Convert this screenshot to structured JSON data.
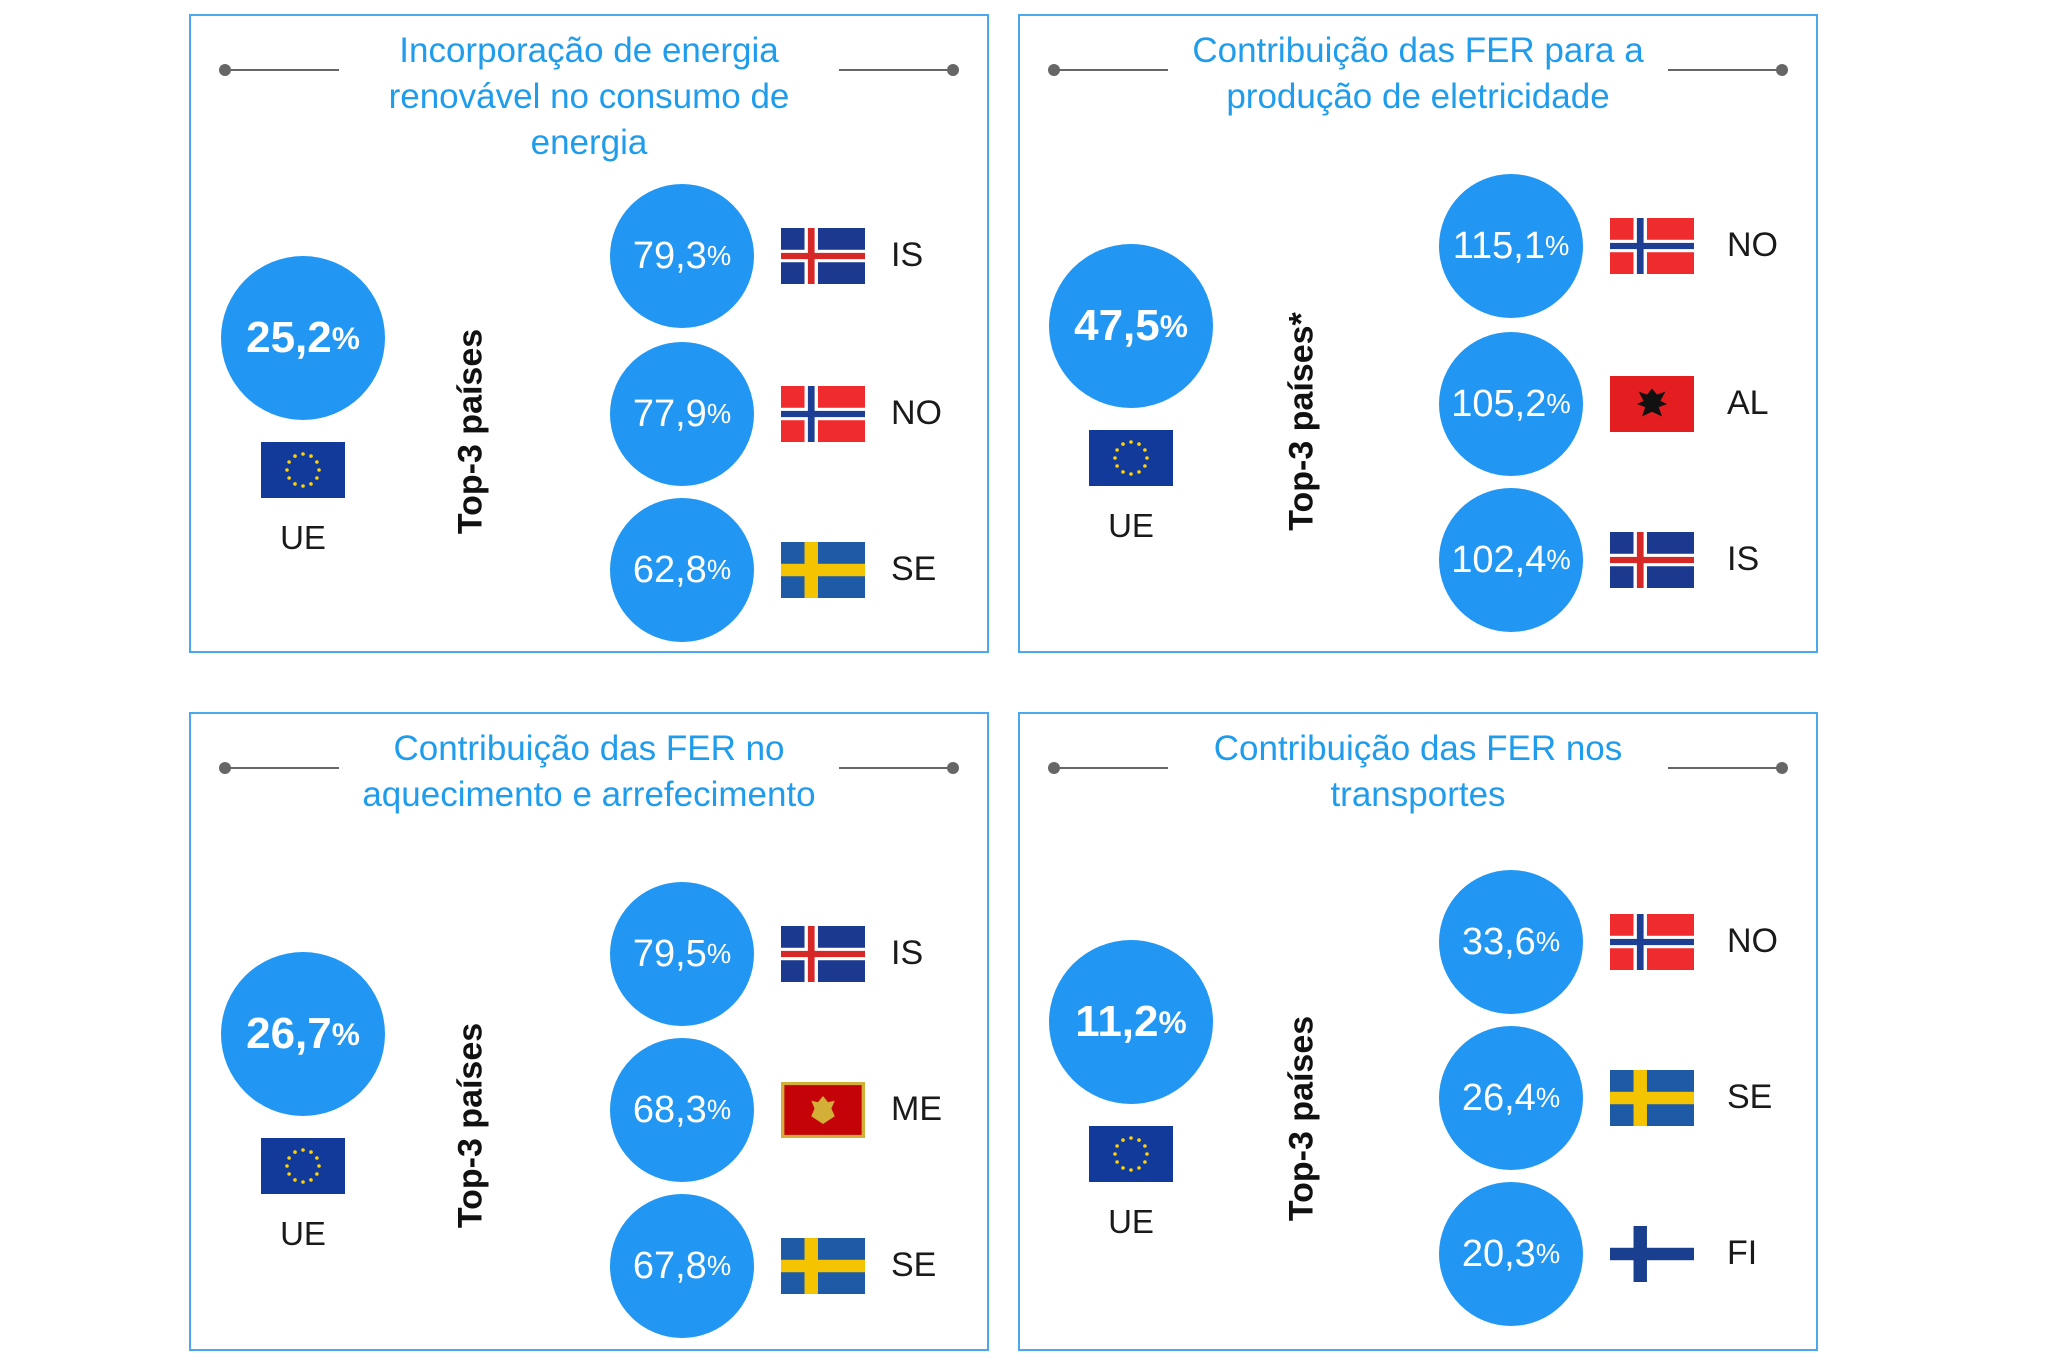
{
  "panels": [
    {
      "title": "Incorporação de energia renovável no consumo de energia",
      "eu_value": "25,2",
      "eu_label": "UE",
      "top_label": "Top-3 países",
      "countries": [
        {
          "value": "79,3",
          "code": "IS",
          "flag": "iceland-flag"
        },
        {
          "value": "77,9",
          "code": "NO",
          "flag": "norway-flag"
        },
        {
          "value": "62,8",
          "code": "SE",
          "flag": "sweden-flag"
        }
      ]
    },
    {
      "title": "Contribuição das FER para a produção de eletricidade",
      "eu_value": "47,5",
      "eu_label": "UE",
      "top_label": "Top-3 países*",
      "countries": [
        {
          "value": "115,1",
          "code": "NO",
          "flag": "norway-flag"
        },
        {
          "value": "105,2",
          "code": "AL",
          "flag": "albania-flag"
        },
        {
          "value": "102,4",
          "code": "IS",
          "flag": "iceland-flag"
        }
      ]
    },
    {
      "title": "Contribuição das FER no aquecimento e arrefecimento",
      "eu_value": "26,7",
      "eu_label": "UE",
      "top_label": "Top-3 países",
      "countries": [
        {
          "value": "79,5",
          "code": "IS",
          "flag": "iceland-flag"
        },
        {
          "value": "68,3",
          "code": "ME",
          "flag": "montenegro-flag"
        },
        {
          "value": "67,8",
          "code": "SE",
          "flag": "sweden-flag"
        }
      ]
    },
    {
      "title": "Contribuição das FER nos transportes",
      "eu_value": "11,2",
      "eu_label": "UE",
      "top_label": "Top-3 países",
      "countries": [
        {
          "value": "33,6",
          "code": "NO",
          "flag": "norway-flag"
        },
        {
          "value": "26,4",
          "code": "SE",
          "flag": "sweden-flag"
        },
        {
          "value": "20,3",
          "code": "FI",
          "flag": "finland-flag"
        }
      ]
    }
  ],
  "percent_sign": "%",
  "colors": {
    "accent": "#2196f3",
    "title": "#1f9cec",
    "border": "#4aa8f0"
  }
}
